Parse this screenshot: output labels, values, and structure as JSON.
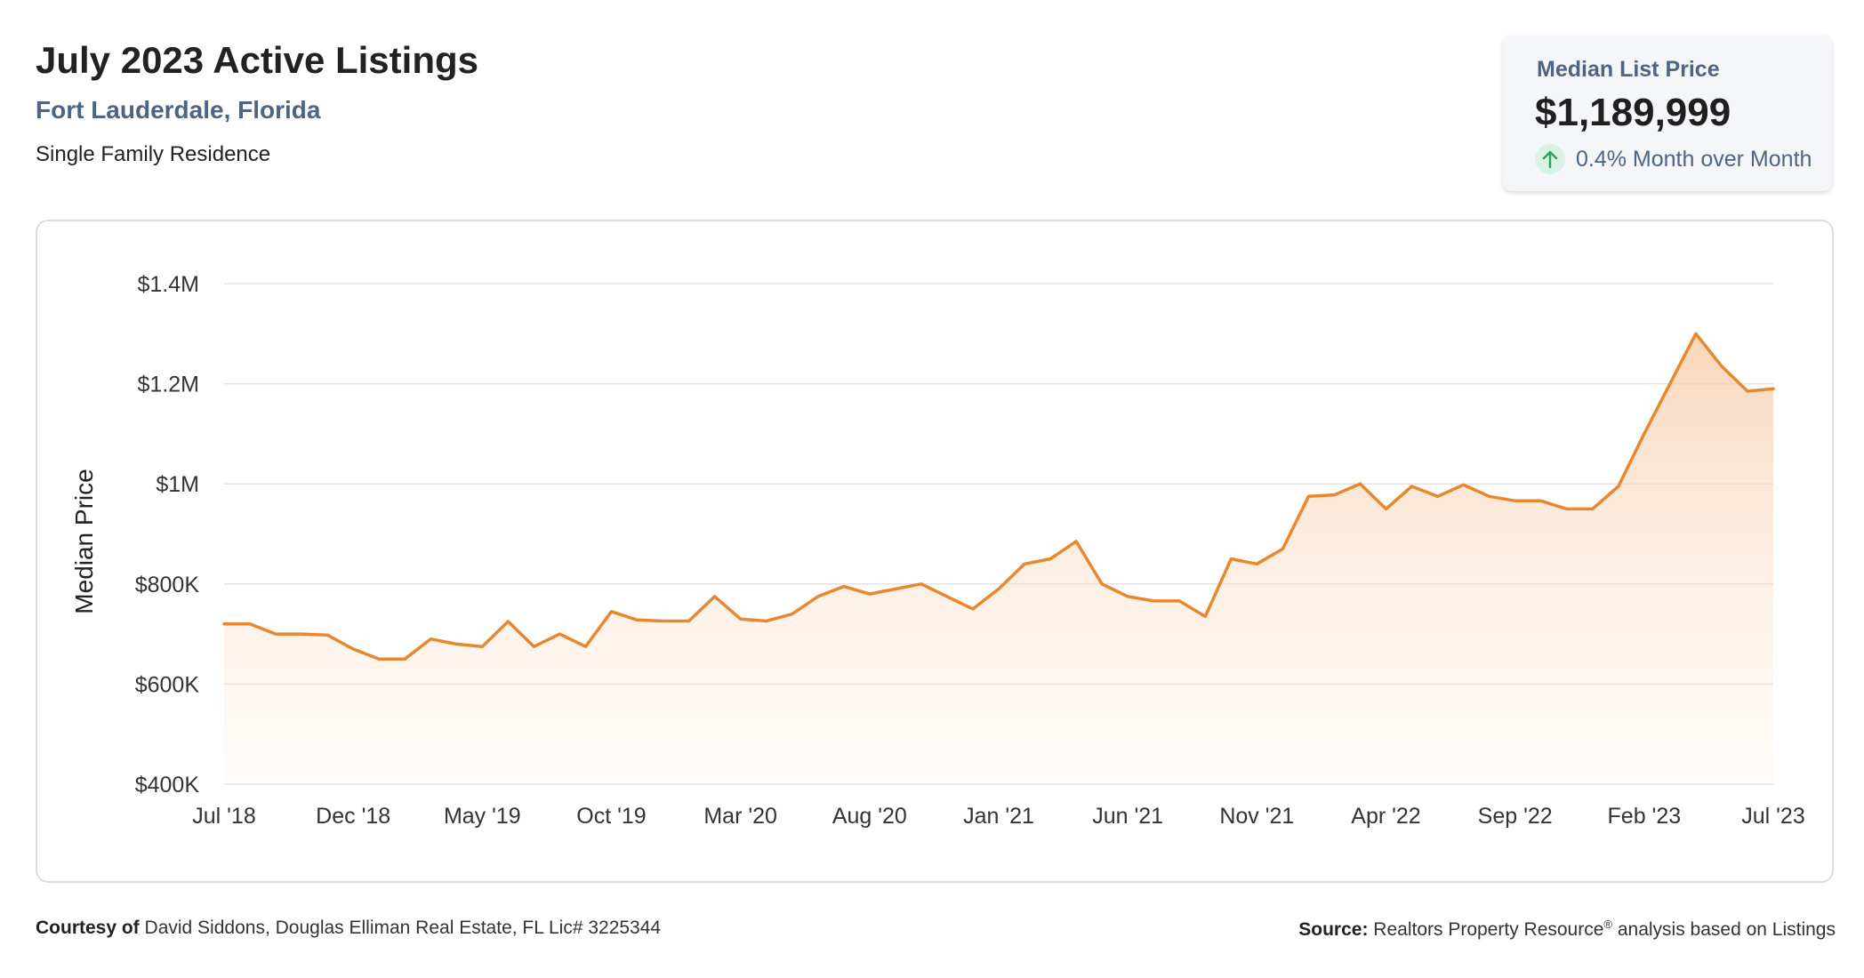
{
  "header": {
    "title": "July 2023 Active Listings",
    "location": "Fort Lauderdale, Florida",
    "property_type": "Single Family Residence"
  },
  "kpi": {
    "label": "Median List Price",
    "value": "$1,189,999",
    "change": "0.4% Month over Month",
    "direction": "up",
    "up_color": "#2e9e5b"
  },
  "colors": {
    "line": "#e8872e",
    "fill": "#fbe3cf",
    "grid": "#e3e3e3",
    "title_accent": "#4d6585"
  },
  "chart_data": {
    "type": "area",
    "ylabel": "Median Price",
    "y_ticks": [
      {
        "value": 400000,
        "label": "$400K"
      },
      {
        "value": 600000,
        "label": "$600K"
      },
      {
        "value": 800000,
        "label": "$800K"
      },
      {
        "value": 1000000,
        "label": "$1M"
      },
      {
        "value": 1200000,
        "label": "$1.2M"
      },
      {
        "value": 1400000,
        "label": "$1.4M"
      }
    ],
    "ylim": [
      400000,
      1400000
    ],
    "x_ticks": [
      {
        "index": 0,
        "label": "Jul '18"
      },
      {
        "index": 5,
        "label": "Dec '18"
      },
      {
        "index": 10,
        "label": "May '19"
      },
      {
        "index": 15,
        "label": "Oct '19"
      },
      {
        "index": 20,
        "label": "Mar '20"
      },
      {
        "index": 25,
        "label": "Aug '20"
      },
      {
        "index": 30,
        "label": "Jan '21"
      },
      {
        "index": 35,
        "label": "Jun '21"
      },
      {
        "index": 40,
        "label": "Nov '21"
      },
      {
        "index": 45,
        "label": "Apr '22"
      },
      {
        "index": 50,
        "label": "Sep '22"
      },
      {
        "index": 55,
        "label": "Feb '23"
      },
      {
        "index": 60,
        "label": "Jul '23"
      }
    ],
    "x": [
      "Jul '18",
      "Aug '18",
      "Sep '18",
      "Oct '18",
      "Nov '18",
      "Dec '18",
      "Jan '19",
      "Feb '19",
      "Mar '19",
      "Apr '19",
      "May '19",
      "Jun '19",
      "Jul '19",
      "Aug '19",
      "Sep '19",
      "Oct '19",
      "Nov '19",
      "Dec '19",
      "Jan '20",
      "Feb '20",
      "Mar '20",
      "Apr '20",
      "May '20",
      "Jun '20",
      "Jul '20",
      "Aug '20",
      "Sep '20",
      "Oct '20",
      "Nov '20",
      "Dec '20",
      "Jan '21",
      "Feb '21",
      "Mar '21",
      "Apr '21",
      "May '21",
      "Jun '21",
      "Jul '21",
      "Aug '21",
      "Sep '21",
      "Oct '21",
      "Nov '21",
      "Dec '21",
      "Jan '22",
      "Feb '22",
      "Mar '22",
      "Apr '22",
      "May '22",
      "Jun '22",
      "Jul '22",
      "Aug '22",
      "Sep '22",
      "Oct '22",
      "Nov '22",
      "Dec '22",
      "Jan '23",
      "Feb '23",
      "Mar '23",
      "Apr '23",
      "May '23",
      "Jun '23",
      "Jul '23"
    ],
    "series": [
      {
        "values": [
          720000,
          720000,
          700000,
          700000,
          698000,
          670000,
          650000,
          650000,
          690000,
          680000,
          675000,
          725000,
          675000,
          700000,
          675000,
          745000,
          728000,
          726000,
          726000,
          775000,
          730000,
          726000,
          740000,
          775000,
          795000,
          780000,
          790000,
          800000,
          775000,
          750000,
          790000,
          840000,
          850000,
          885000,
          800000,
          775000,
          766000,
          766000,
          735000,
          850000,
          840000,
          870000,
          975000,
          978000,
          1000000,
          950000,
          995000,
          975000,
          998000,
          975000,
          966000,
          966000,
          950000,
          950000,
          995000,
          1100000,
          1200000,
          1300000,
          1235000,
          1185000,
          1190000
        ]
      }
    ]
  },
  "footer": {
    "courtesy_label": "Courtesy of",
    "courtesy_text": "David Siddons, Douglas Elliman Real Estate, FL Lic# 3225344",
    "source_label": "Source:",
    "source_text_1": "Realtors Property Resource",
    "source_reg": "®",
    "source_text_2": " analysis based on Listings"
  }
}
